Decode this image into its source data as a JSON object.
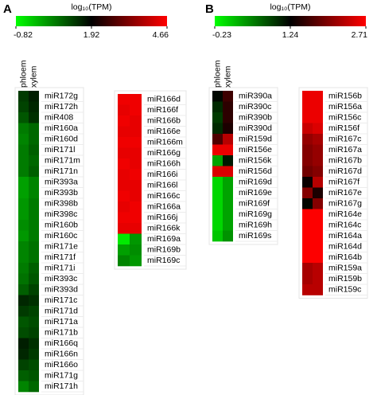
{
  "chart_data": [
    {
      "type": "heatmap",
      "panel": "A",
      "colorbar_title": "log₁₀(TPM)",
      "clim": [
        -0.82,
        4.66
      ],
      "cticks": [
        -0.82,
        1.92,
        4.66
      ],
      "colors": [
        "#00ff00",
        "#000000",
        "#ff0000"
      ],
      "columns": [
        "phloem",
        "xylem"
      ],
      "groups": [
        {
          "rows": [
            "miR172g",
            "miR172h",
            "miR408",
            "miR160a",
            "miR160d",
            "miR171l",
            "miR171m",
            "miR171n",
            "miR393a",
            "miR393b",
            "miR398b",
            "miR398c",
            "miR160b",
            "miR160c",
            "miR171e",
            "miR171f",
            "miR171i",
            "miR393c",
            "miR393d",
            "miR171c",
            "miR171d",
            "miR171a",
            "miR171b",
            "miR166q",
            "miR166n",
            "miR166o",
            "miR171g",
            "miR171h"
          ],
          "values": [
            [
              1.3,
              1.6
            ],
            [
              1.2,
              1.5
            ],
            [
              1.0,
              1.4
            ],
            [
              0.6,
              0.8
            ],
            [
              0.5,
              0.8
            ],
            [
              0.6,
              0.9
            ],
            [
              0.6,
              0.8
            ],
            [
              0.6,
              0.9
            ],
            [
              0.2,
              0.5
            ],
            [
              0.2,
              0.5
            ],
            [
              0.3,
              0.6
            ],
            [
              0.3,
              0.6
            ],
            [
              0.4,
              0.6
            ],
            [
              0.3,
              0.6
            ],
            [
              0.5,
              0.7
            ],
            [
              0.5,
              0.7
            ],
            [
              0.6,
              0.9
            ],
            [
              0.7,
              1.0
            ],
            [
              0.9,
              1.2
            ],
            [
              1.5,
              1.4
            ],
            [
              1.3,
              1.2
            ],
            [
              1.0,
              1.1
            ],
            [
              1.1,
              1.2
            ],
            [
              1.6,
              1.4
            ],
            [
              1.5,
              1.3
            ],
            [
              1.2,
              1.1
            ],
            [
              0.9,
              1.0
            ],
            [
              0.5,
              0.8
            ]
          ]
        },
        {
          "rows": [
            "miR166d",
            "miR166f",
            "miR166b",
            "miR166e",
            "miR166m",
            "miR166g",
            "miR166h",
            "miR166i",
            "miR166l",
            "miR166c",
            "miR166a",
            "miR166j",
            "miR166k",
            "miR169a",
            "miR169b",
            "miR169c"
          ],
          "values": [
            [
              4.5,
              4.5
            ],
            [
              4.4,
              4.5
            ],
            [
              4.5,
              4.4
            ],
            [
              4.4,
              4.4
            ],
            [
              4.5,
              4.5
            ],
            [
              4.4,
              4.4
            ],
            [
              4.5,
              4.4
            ],
            [
              4.4,
              4.5
            ],
            [
              4.4,
              4.4
            ],
            [
              4.5,
              4.4
            ],
            [
              4.4,
              4.5
            ],
            [
              4.5,
              4.5
            ],
            [
              4.4,
              4.4
            ],
            [
              -0.6,
              0.3
            ],
            [
              0.2,
              0.4
            ],
            [
              0.5,
              0.3
            ]
          ]
        }
      ]
    },
    {
      "type": "heatmap",
      "panel": "B",
      "colorbar_title": "log₁₀(TPM)",
      "clim": [
        -0.23,
        2.71
      ],
      "cticks": [
        -0.23,
        1.24,
        2.71
      ],
      "colors": [
        "#00ff00",
        "#000000",
        "#ff0000"
      ],
      "columns": [
        "phloem",
        "xylem"
      ],
      "groups": [
        {
          "rows": [
            "miR390a",
            "miR390c",
            "miR390b",
            "miR390d",
            "miR159d",
            "miR156e",
            "miR156k",
            "miR156d",
            "miR169d",
            "miR169e",
            "miR169f",
            "miR169g",
            "miR169h",
            "miR169s"
          ],
          "values": [
            [
              1.2,
              1.6
            ],
            [
              1.0,
              1.5
            ],
            [
              0.9,
              1.5
            ],
            [
              1.0,
              1.4
            ],
            [
              1.7,
              2.3
            ],
            [
              2.6,
              2.6
            ],
            [
              0.3,
              1.1
            ],
            [
              2.5,
              2.5
            ],
            [
              0.0,
              0.3
            ],
            [
              0.0,
              0.3
            ],
            [
              0.0,
              0.3
            ],
            [
              0.0,
              0.3
            ],
            [
              0.0,
              0.3
            ],
            [
              0.1,
              0.4
            ]
          ]
        },
        {
          "rows": [
            "miR156b",
            "miR156a",
            "miR156c",
            "miR156f",
            "miR167c",
            "miR167a",
            "miR167b",
            "miR167d",
            "miR167f",
            "miR167e",
            "miR167g",
            "miR164e",
            "miR164c",
            "miR164a",
            "miR164d",
            "miR164b",
            "miR159a",
            "miR159b",
            "miR159c"
          ],
          "values": [
            [
              2.6,
              2.6
            ],
            [
              2.6,
              2.6
            ],
            [
              2.6,
              2.6
            ],
            [
              2.4,
              2.5
            ],
            [
              2.1,
              2.2
            ],
            [
              2.0,
              2.1
            ],
            [
              2.0,
              2.1
            ],
            [
              1.9,
              2.0
            ],
            [
              1.3,
              2.3
            ],
            [
              2.0,
              1.4
            ],
            [
              1.2,
              2.0
            ],
            [
              2.7,
              2.7
            ],
            [
              2.7,
              2.7
            ],
            [
              2.7,
              2.7
            ],
            [
              2.7,
              2.7
            ],
            [
              2.7,
              2.7
            ],
            [
              2.2,
              2.3
            ],
            [
              2.2,
              2.3
            ],
            [
              2.3,
              2.3
            ]
          ]
        }
      ]
    }
  ]
}
